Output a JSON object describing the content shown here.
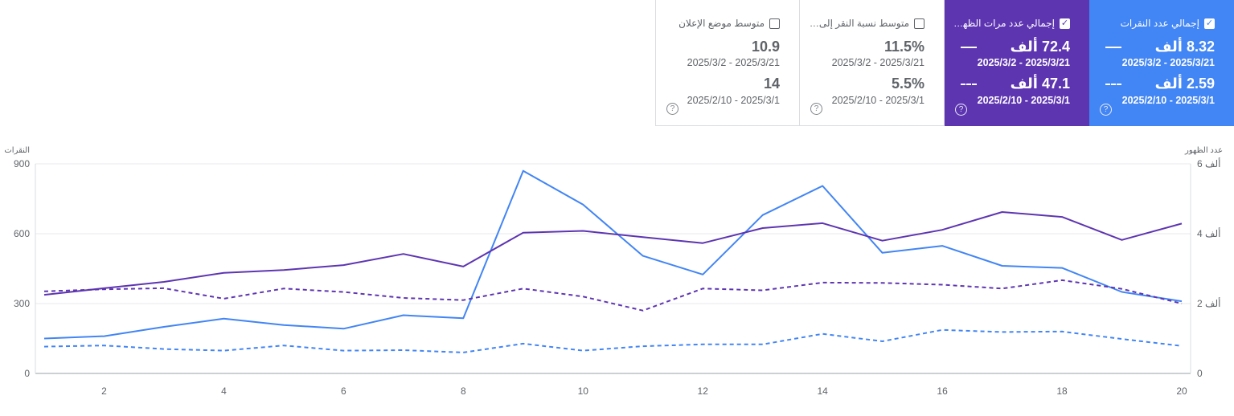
{
  "cards": [
    {
      "key": "clicks",
      "title": "إجمالي عدد النقرات",
      "checked": true,
      "value_recent": "8.32 ألف",
      "range_recent": "2025/3/2 - 2025/3/21",
      "value_prev": "2.59 ألف",
      "range_prev": "2025/2/10 - 2025/3/1",
      "color": "#4285f4"
    },
    {
      "key": "impressions",
      "title": "إجمالي عدد مرات الظهـ...",
      "checked": true,
      "value_recent": "72.4 ألف",
      "range_recent": "2025/3/2 - 2025/3/21",
      "value_prev": "47.1 ألف",
      "range_prev": "2025/2/10 - 2025/3/1",
      "color": "#5e35b1"
    },
    {
      "key": "ctr",
      "title": "متوسط نسبة النقر إلى الـ...",
      "checked": false,
      "value_recent": "11.5%",
      "range_recent": "2025/3/2 - 2025/3/21",
      "value_prev": "5.5%",
      "range_prev": "2025/2/10 - 2025/3/1",
      "color": "#ffffff"
    },
    {
      "key": "position",
      "title": "متوسط موضع الإعلان",
      "checked": false,
      "value_recent": "10.9",
      "range_recent": "2025/3/2 - 2025/3/21",
      "value_prev": "14",
      "range_prev": "2025/2/10 - 2025/3/1",
      "color": "#ffffff"
    }
  ],
  "chart_data": {
    "type": "line",
    "left_axis_title": "النقرات",
    "right_axis_title": "عدد الظهور",
    "left_ylim": [
      0,
      900
    ],
    "left_ticks": [
      0,
      300,
      600,
      900
    ],
    "right_ylim": [
      0,
      6000
    ],
    "right_ticks": [
      {
        "value": 0,
        "label": "0"
      },
      {
        "value": 2000,
        "label": "2 ألف"
      },
      {
        "value": 4000,
        "label": "4 ألف"
      },
      {
        "value": 6000,
        "label": "6 ألف"
      }
    ],
    "x": [
      1,
      2,
      3,
      4,
      5,
      6,
      7,
      8,
      9,
      10,
      11,
      12,
      13,
      14,
      15,
      16,
      17,
      18,
      19,
      20
    ],
    "x_ticks": [
      2,
      4,
      6,
      8,
      10,
      12,
      14,
      16,
      18,
      20
    ],
    "grid": true,
    "series": [
      {
        "metric": "clicks",
        "period": "recent",
        "axis": "left",
        "color": "#4285f4",
        "dashed": false,
        "values": [
          150,
          160,
          200,
          235,
          208,
          192,
          250,
          237,
          870,
          725,
          505,
          425,
          680,
          805,
          518,
          548,
          462,
          453,
          350,
          310
        ]
      },
      {
        "metric": "clicks",
        "period": "previous",
        "axis": "left",
        "color": "#4285f4",
        "dashed": true,
        "values": [
          115,
          120,
          105,
          98,
          120,
          98,
          100,
          90,
          128,
          98,
          117,
          125,
          125,
          170,
          138,
          187,
          178,
          180,
          148,
          118
        ]
      },
      {
        "metric": "impressions",
        "period": "recent",
        "axis": "right",
        "color": "#5e35b1",
        "dashed": false,
        "values": [
          2250,
          2440,
          2620,
          2880,
          2960,
          3100,
          3420,
          3060,
          4030,
          4080,
          3900,
          3730,
          4160,
          4300,
          3800,
          4110,
          4620,
          4480,
          3820,
          4290
        ]
      },
      {
        "metric": "impressions",
        "period": "previous",
        "axis": "right",
        "color": "#5e35b1",
        "dashed": true,
        "values": [
          2350,
          2410,
          2440,
          2140,
          2430,
          2330,
          2160,
          2100,
          2430,
          2200,
          1800,
          2430,
          2380,
          2600,
          2590,
          2540,
          2430,
          2670,
          2420,
          2000
        ]
      }
    ]
  }
}
